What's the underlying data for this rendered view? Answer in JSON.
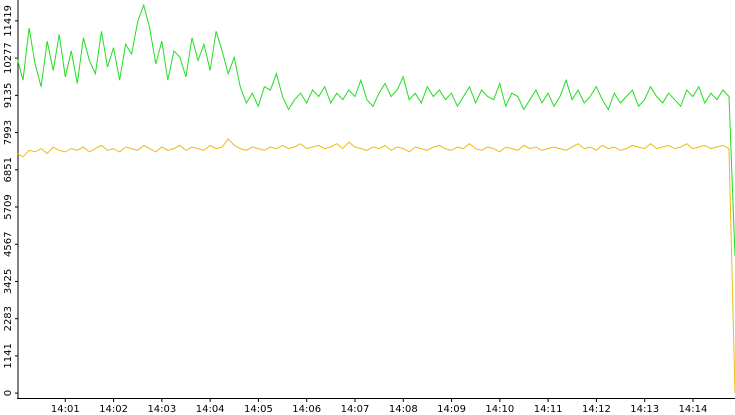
{
  "chart_data": {
    "type": "line",
    "xlim": [
      0,
      14.87
    ],
    "xticks": [
      {
        "value": 1,
        "label": "14:01"
      },
      {
        "value": 2,
        "label": "14:02"
      },
      {
        "value": 3,
        "label": "14:03"
      },
      {
        "value": 4,
        "label": "14:04"
      },
      {
        "value": 5,
        "label": "14:05"
      },
      {
        "value": 6,
        "label": "14:06"
      },
      {
        "value": 7,
        "label": "14:07"
      },
      {
        "value": 8,
        "label": "14:08"
      },
      {
        "value": 9,
        "label": "14:09"
      },
      {
        "value": 10,
        "label": "14:10"
      },
      {
        "value": 11,
        "label": "14:11"
      },
      {
        "value": 12,
        "label": "14:12"
      },
      {
        "value": 13,
        "label": "14:13"
      },
      {
        "value": 14,
        "label": "14:14"
      }
    ],
    "ylim": [
      -150,
      12060
    ],
    "yticks": [
      0,
      1141,
      2283,
      3425,
      4567,
      5709,
      6851,
      7993,
      9135,
      10277,
      11419
    ],
    "series": [
      {
        "color": "#22dd22",
        "values": [
          10300,
          9600,
          11200,
          10100,
          9400,
          10800,
          9900,
          11000,
          9700,
          10500,
          9500,
          10900,
          10200,
          9800,
          11100,
          10000,
          10600,
          9600,
          10700,
          10400,
          11400,
          11900,
          11200,
          10100,
          10800,
          9600,
          10500,
          10300,
          9700,
          10900,
          10200,
          10700,
          9900,
          11100,
          10500,
          9800,
          10300,
          9400,
          8900,
          9200,
          8800,
          9400,
          9300,
          9800,
          9100,
          8700,
          9000,
          9200,
          8900,
          9300,
          9100,
          9400,
          8900,
          9200,
          9000,
          9300,
          9100,
          9600,
          9000,
          8800,
          9200,
          9500,
          9100,
          9300,
          9700,
          9000,
          9200,
          8900,
          9400,
          9100,
          9300,
          9000,
          9200,
          8800,
          9100,
          9400,
          8900,
          9300,
          9100,
          9000,
          9500,
          8800,
          9200,
          9100,
          8700,
          9000,
          9300,
          8900,
          9200,
          8800,
          9100,
          9600,
          9000,
          9300,
          8900,
          9100,
          9400,
          9000,
          8700,
          9200,
          8900,
          9100,
          9300,
          8800,
          9000,
          9400,
          9100,
          8900,
          9200,
          9000,
          8800,
          9300,
          9100,
          9400,
          8900,
          9200,
          9000,
          9300,
          9100,
          4200
        ]
      },
      {
        "color": "#eebb11",
        "values": [
          7350,
          7250,
          7450,
          7400,
          7500,
          7350,
          7550,
          7450,
          7400,
          7500,
          7450,
          7550,
          7400,
          7500,
          7600,
          7450,
          7500,
          7400,
          7550,
          7500,
          7450,
          7600,
          7500,
          7400,
          7550,
          7450,
          7500,
          7600,
          7450,
          7550,
          7500,
          7450,
          7600,
          7500,
          7550,
          7800,
          7600,
          7500,
          7450,
          7550,
          7500,
          7450,
          7550,
          7500,
          7600,
          7500,
          7550,
          7650,
          7500,
          7550,
          7600,
          7500,
          7550,
          7650,
          7500,
          7700,
          7550,
          7500,
          7450,
          7550,
          7500,
          7600,
          7450,
          7550,
          7500,
          7400,
          7550,
          7500,
          7450,
          7550,
          7600,
          7500,
          7450,
          7550,
          7500,
          7650,
          7500,
          7450,
          7550,
          7500,
          7400,
          7550,
          7500,
          7450,
          7600,
          7500,
          7550,
          7450,
          7500,
          7550,
          7500,
          7450,
          7550,
          7650,
          7500,
          7550,
          7450,
          7600,
          7500,
          7550,
          7450,
          7500,
          7600,
          7550,
          7500,
          7650,
          7500,
          7550,
          7600,
          7500,
          7550,
          7650,
          7500,
          7550,
          7600,
          7500,
          7550,
          7600,
          7500,
          0
        ]
      }
    ]
  }
}
